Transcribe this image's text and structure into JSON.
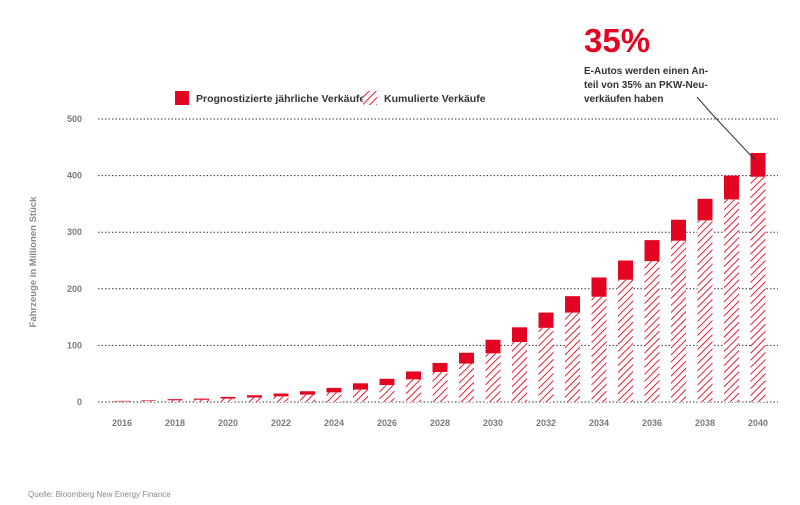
{
  "colors": {
    "accent": "#e30521",
    "grid": "#333333",
    "text": "#333333",
    "muted": "#8a8a8a"
  },
  "chart_data": {
    "type": "bar",
    "stacked": true,
    "ylabel": "Fahrzeuge in Millionen Stück",
    "ylim": [
      0,
      500
    ],
    "yticks": [
      0,
      100,
      200,
      300,
      400,
      500
    ],
    "years": [
      2016,
      2017,
      2018,
      2019,
      2020,
      2021,
      2022,
      2023,
      2024,
      2025,
      2026,
      2027,
      2028,
      2029,
      2030,
      2031,
      2032,
      2033,
      2034,
      2035,
      2036,
      2037,
      2038,
      2039,
      2040
    ],
    "xtick_labels": [
      "2016",
      "2018",
      "2020",
      "2022",
      "2024",
      "2026",
      "2028",
      "2030",
      "2032",
      "2034",
      "2036",
      "2038",
      "2040"
    ],
    "legend": [
      "Prognostizierte jährliche Verkäufe",
      "Kumulierte Verkäufe"
    ],
    "series": [
      {
        "name": "Kumulierte Verkäufe",
        "pattern": "hatched",
        "values": [
          1,
          2,
          3,
          4,
          6,
          8,
          10,
          13,
          17,
          22,
          30,
          40,
          53,
          68,
          86,
          106,
          131,
          158,
          186,
          216,
          249,
          285,
          321,
          358,
          398
        ]
      },
      {
        "name": "Prognostizierte jährliche Verkäufe",
        "pattern": "solid",
        "values": [
          1,
          1,
          2,
          2,
          3,
          4,
          5,
          6,
          8,
          11,
          11,
          14,
          16,
          19,
          24,
          26,
          27,
          29,
          34,
          34,
          37,
          37,
          38,
          42,
          42
        ]
      }
    ],
    "annotation": {
      "value": "35%",
      "lines": [
        "E-Autos werden einen An-",
        "teil von 35% an PKW-Neu-",
        "verkäufen haben"
      ]
    },
    "source": "Quelle: Bloomberg New Energy Finance"
  }
}
